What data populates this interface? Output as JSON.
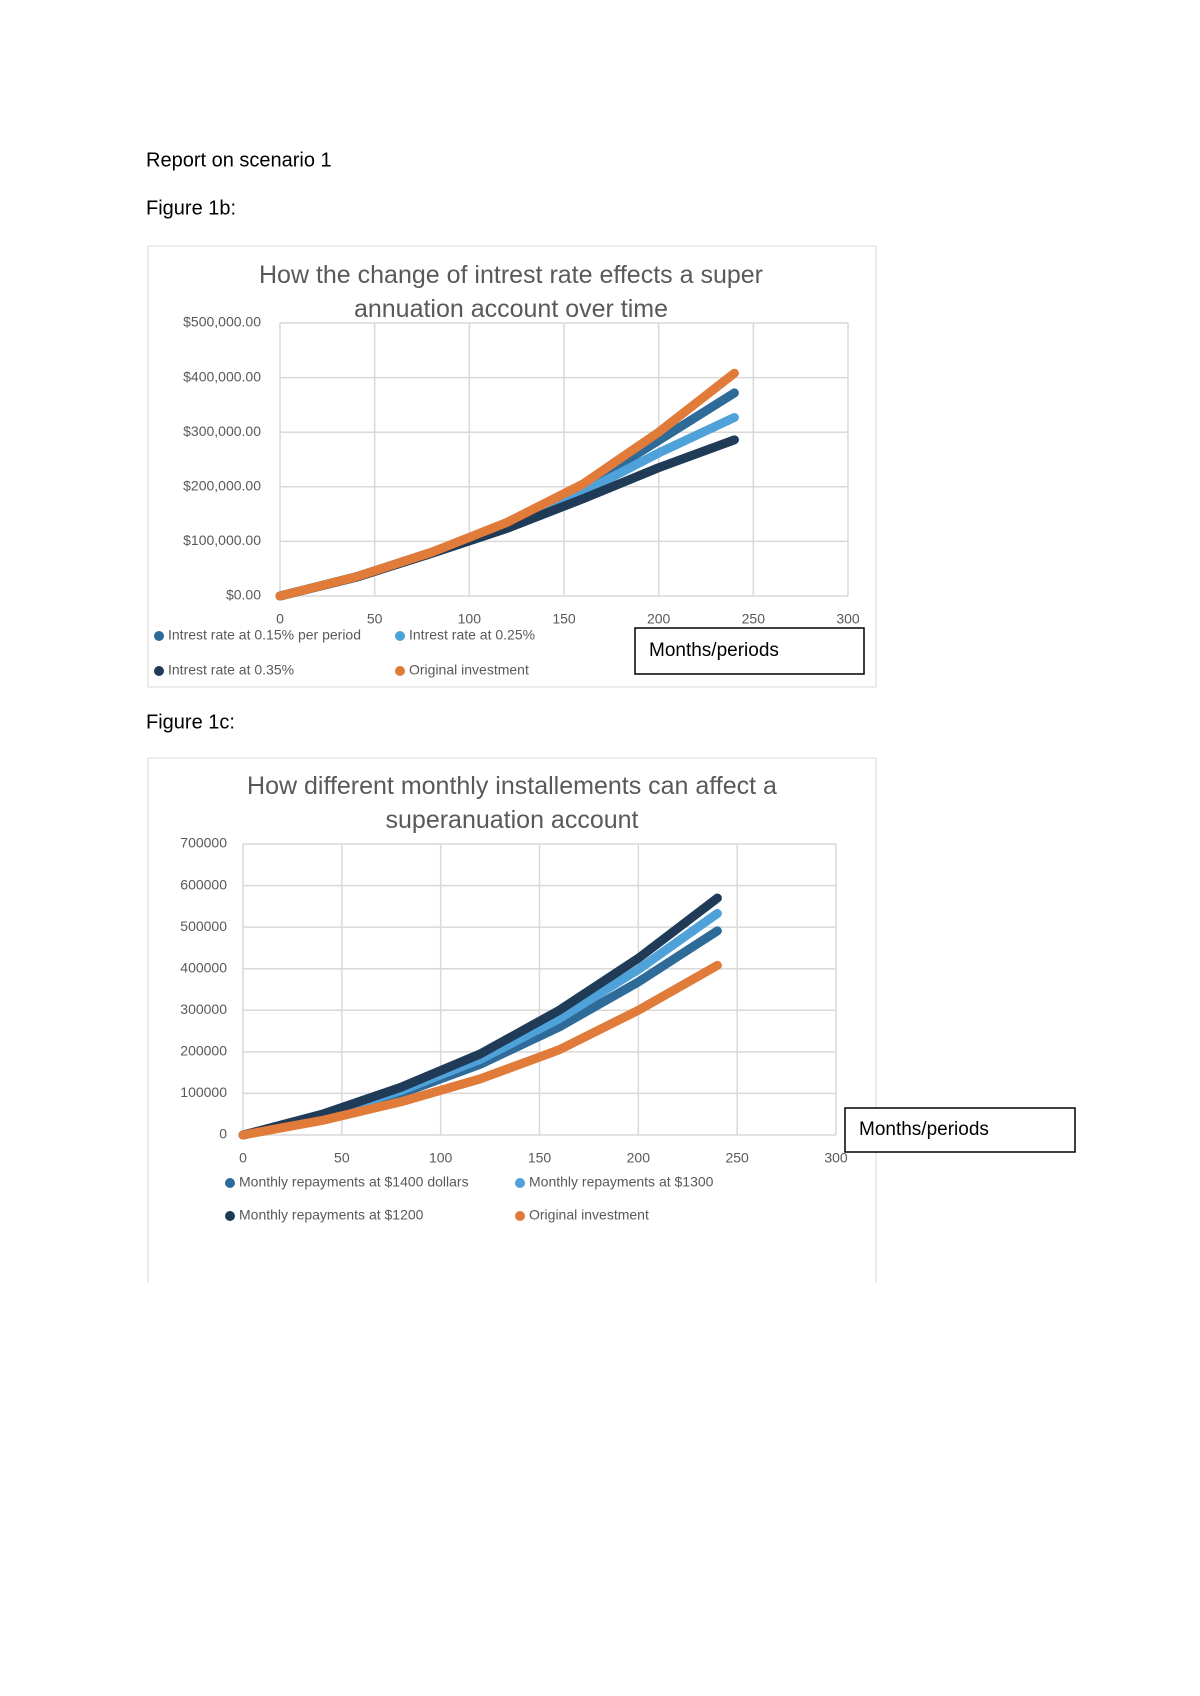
{
  "heading": "Report on scenario 1",
  "captions": [
    "Figure 1b:",
    "Figure 1c:"
  ],
  "chart_data": [
    {
      "type": "line",
      "title": "How the change of intrest rate effects a super annuation account over time",
      "xlabel": "Months/periods",
      "x": [
        0,
        40,
        80,
        120,
        160,
        200,
        240
      ],
      "xlim": [
        0,
        300
      ],
      "xticks": [
        0,
        50,
        100,
        150,
        200,
        250,
        300
      ],
      "ylim": [
        0,
        500000
      ],
      "yticks": [
        {
          "value": 0,
          "label": "$0.00"
        },
        {
          "value": 100000,
          "label": "$100,000.00"
        },
        {
          "value": 200000,
          "label": "$200,000.00"
        },
        {
          "value": 300000,
          "label": "$300,000.00"
        },
        {
          "value": 400000,
          "label": "$400,000.00"
        },
        {
          "value": 500000,
          "label": "$500,000.00"
        }
      ],
      "grid": true,
      "series": [
        {
          "name": "Intrest rate at 0.15% per period",
          "color": "#2e6b99",
          "values": [
            0,
            35000,
            80000,
            130000,
            198000,
            285000,
            372000
          ]
        },
        {
          "name": "Intrest rate at 0.25%",
          "color": "#4ea2d9",
          "values": [
            0,
            35000,
            79000,
            127000,
            190000,
            262000,
            327000
          ]
        },
        {
          "name": "Intrest rate at 0.35%",
          "color": "#1f3b57",
          "values": [
            0,
            34000,
            78000,
            124000,
            178000,
            235000,
            286000
          ]
        },
        {
          "name": "Original investment",
          "color": "#e07b39",
          "values": [
            0,
            35000,
            80000,
            135000,
            205000,
            300000,
            408000
          ]
        }
      ]
    },
    {
      "type": "line",
      "title": "How different monthly installements can affect a superanuation account",
      "xlabel": "Months/periods",
      "x": [
        0,
        40,
        80,
        120,
        160,
        200,
        240
      ],
      "xlim": [
        0,
        300
      ],
      "xticks": [
        0,
        50,
        100,
        150,
        200,
        250,
        300
      ],
      "ylim": [
        0,
        700000
      ],
      "yticks": [
        0,
        100000,
        200000,
        300000,
        400000,
        500000,
        600000,
        700000
      ],
      "grid": true,
      "series": [
        {
          "name": "Monthly repayments at $1400 dollars",
          "color": "#2e6b99",
          "values": [
            0,
            44000,
            100000,
            170000,
            260000,
            368000,
            491000
          ]
        },
        {
          "name": "Monthly repayments at $1300",
          "color": "#4ea2d9",
          "values": [
            0,
            47000,
            107000,
            182000,
            280000,
            398000,
            533000
          ]
        },
        {
          "name": "Monthly repayments at $1200",
          "color": "#1f3b57",
          "values": [
            0,
            50000,
            115000,
            195000,
            300000,
            425000,
            570000
          ]
        },
        {
          "name": "Original investment",
          "color": "#e07b39",
          "values": [
            0,
            35000,
            80000,
            135000,
            205000,
            300000,
            408000
          ]
        }
      ]
    }
  ]
}
